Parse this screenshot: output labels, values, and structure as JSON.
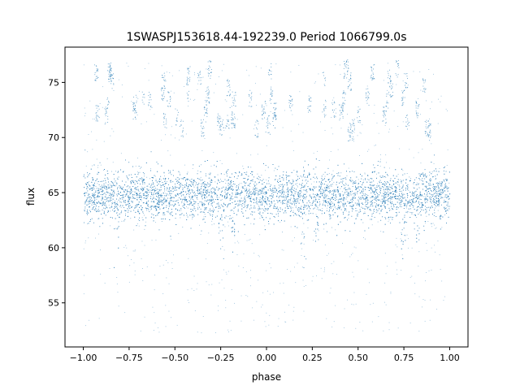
{
  "chart_data": {
    "type": "scatter",
    "title": "1SWASPJ153618.44-192239.0 Period 1066799.0s",
    "xlabel": "phase",
    "ylabel": "flux",
    "xlim": [
      -1.1,
      1.1
    ],
    "ylim": [
      51.0,
      78.2
    ],
    "xticks": [
      -1.0,
      -0.75,
      -0.5,
      -0.25,
      0.0,
      0.25,
      0.5,
      0.75,
      1.0
    ],
    "xtick_labels": [
      "−1.00",
      "−0.75",
      "−0.50",
      "−0.25",
      "0.00",
      "0.25",
      "0.50",
      "0.75",
      "1.00"
    ],
    "yticks": [
      55,
      60,
      65,
      70,
      75
    ],
    "ytick_labels": [
      "55",
      "60",
      "65",
      "70",
      "75"
    ],
    "grid": false,
    "legend": "none",
    "marker_color": "#1f77b4",
    "series_description": {
      "phase_range": [
        -1.0,
        1.0
      ],
      "main_band_flux_range": [
        62.0,
        67.5
      ],
      "main_band_center": 64.8,
      "upper_cluster_flux_range": [
        70.5,
        76.5
      ],
      "sparse_outlier_flux_range": [
        52.3,
        76.8
      ],
      "dip_phases": [
        -0.82,
        -0.25,
        -0.18,
        0.2,
        0.27,
        0.75,
        0.82
      ]
    }
  }
}
